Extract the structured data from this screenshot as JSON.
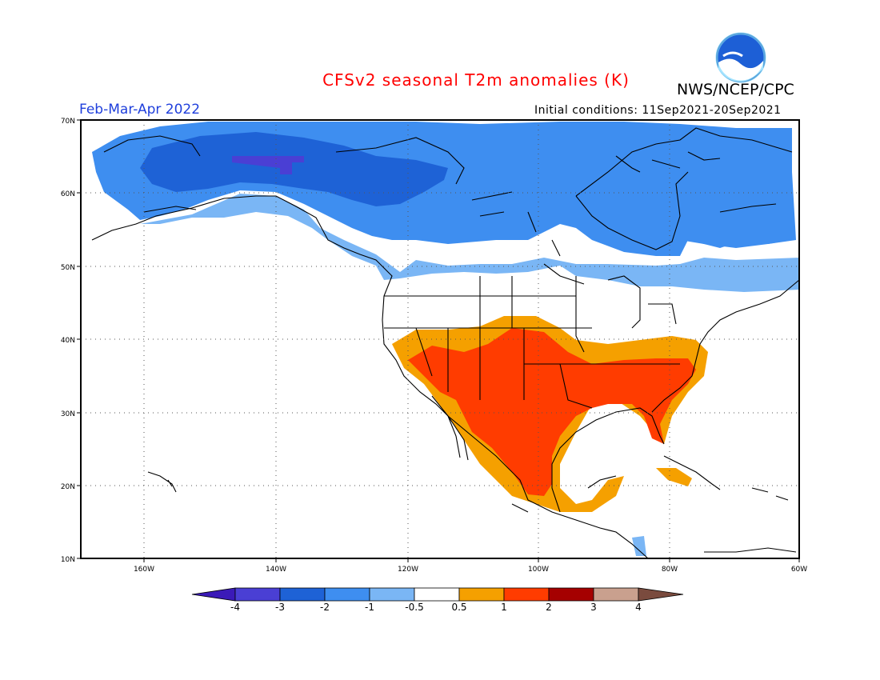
{
  "title": "CFSv2 seasonal T2m anomalies (K)",
  "agency": "NWS/NCEP/CPC",
  "logo_text": "NOAA",
  "period": "Feb-Mar-Apr 2022",
  "initial_conditions": "Initial conditions: 11Sep2021-20Sep2021",
  "lat_labels": [
    "70N",
    "60N",
    "50N",
    "40N",
    "30N",
    "20N",
    "10N"
  ],
  "lon_labels": [
    "160W",
    "140W",
    "120W",
    "100W",
    "80W",
    "60W"
  ],
  "colorbar": {
    "labels": [
      "-4",
      "-3",
      "-2",
      "-1",
      "-0.5",
      "0.5",
      "1",
      "2",
      "3",
      "4"
    ],
    "colors": [
      "#3b1ab8",
      "#4a3fd4",
      "#1e62d6",
      "#3e8ef0",
      "#7ab6f5",
      "#ffffff",
      "#f5a000",
      "#ff3c00",
      "#a50000",
      "#c9a08e",
      "#7a4b3e"
    ]
  }
}
